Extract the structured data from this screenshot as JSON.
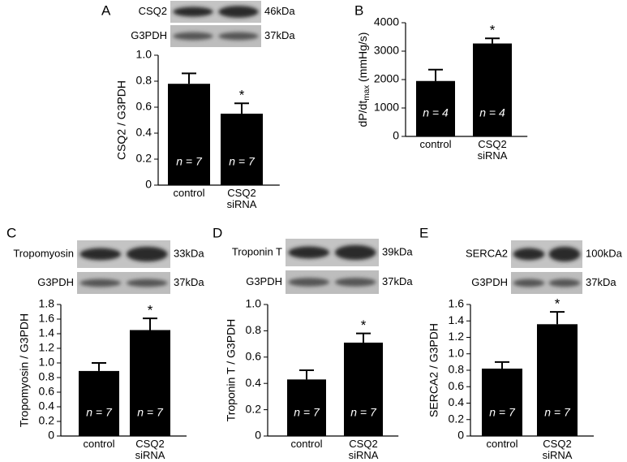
{
  "chart_data": [
    {
      "type": "bar",
      "panel": "A",
      "blot": [
        {
          "protein": "CSQ2",
          "size": "46kDa"
        },
        {
          "protein": "G3PDH",
          "size": "37kDa"
        }
      ],
      "ylabel": "CSQ2 / G3PDH",
      "categories": [
        "control",
        "CSQ2 siRNA"
      ],
      "values": [
        0.78,
        0.55
      ],
      "errors": [
        0.08,
        0.08
      ],
      "n_labels": [
        "n = 7",
        "n = 7"
      ],
      "markers": [
        null,
        "*"
      ],
      "color": "#000000",
      "ylim": [
        0,
        1
      ],
      "yticks": [
        0,
        0.2,
        0.4,
        0.6,
        0.8,
        {
          "value": 1,
          "label": "1.0"
        }
      ]
    },
    {
      "type": "bar",
      "panel": "B",
      "ylabel": {
        "main": "dP/dt",
        "sub": "max",
        "unit": " (mmHg/s)"
      },
      "categories": [
        "control",
        "CSQ2 siRNA"
      ],
      "values": [
        1950,
        3270
      ],
      "errors": [
        400,
        180
      ],
      "n_labels": [
        "n = 4",
        "n = 4"
      ],
      "markers": [
        null,
        "*"
      ],
      "color": "#000000",
      "ylim": [
        0,
        4000
      ],
      "yticks": [
        0,
        1000,
        2000,
        3000,
        4000
      ]
    },
    {
      "type": "bar",
      "panel": "C",
      "blot": [
        {
          "protein": "Tropomyosin",
          "size": "33kDa"
        },
        {
          "protein": "G3PDH",
          "size": "37kDa"
        }
      ],
      "ylabel": "Tropomyosin / G3PDH",
      "categories": [
        "control",
        "CSQ2 siRNA"
      ],
      "values": [
        0.89,
        1.45
      ],
      "errors": [
        0.11,
        0.16
      ],
      "n_labels": [
        "n = 7",
        "n = 7"
      ],
      "markers": [
        null,
        "*"
      ],
      "color": "#000000",
      "ylim": [
        0,
        1.8
      ],
      "yticks": [
        0,
        0.2,
        0.4,
        0.6,
        0.8,
        {
          "value": 1,
          "label": "1.0"
        },
        1.2,
        1.4,
        1.6,
        1.8
      ]
    },
    {
      "type": "bar",
      "panel": "D",
      "blot": [
        {
          "protein": "Troponin T",
          "size": "39kDa"
        },
        {
          "protein": "G3PDH",
          "size": "37kDa"
        }
      ],
      "ylabel": "Troponin T / G3PDH",
      "categories": [
        "control",
        "CSQ2 siRNA"
      ],
      "values": [
        0.43,
        0.71
      ],
      "errors": [
        0.07,
        0.07
      ],
      "n_labels": [
        "n = 7",
        "n = 7"
      ],
      "markers": [
        null,
        "*"
      ],
      "color": "#000000",
      "ylim": [
        0,
        1
      ],
      "yticks": [
        0,
        0.2,
        0.4,
        0.6,
        0.8,
        {
          "value": 1,
          "label": "1.0"
        }
      ]
    },
    {
      "type": "bar",
      "panel": "E",
      "blot": [
        {
          "protein": "SERCA2",
          "size": "100kDa"
        },
        {
          "protein": "G3PDH",
          "size": "37kDa"
        }
      ],
      "ylabel": "SERCA2 / G3PDH",
      "categories": [
        "control",
        "CSQ2 siRNA"
      ],
      "values": [
        0.82,
        1.36
      ],
      "errors": [
        0.08,
        0.15
      ],
      "n_labels": [
        "n = 7",
        "n = 7"
      ],
      "markers": [
        null,
        "*"
      ],
      "color": "#000000",
      "ylim": [
        0,
        1.6
      ],
      "yticks": [
        0,
        0.2,
        0.4,
        0.6,
        0.8,
        {
          "value": 1,
          "label": "1.0"
        },
        1.2,
        1.4,
        1.6
      ]
    }
  ]
}
